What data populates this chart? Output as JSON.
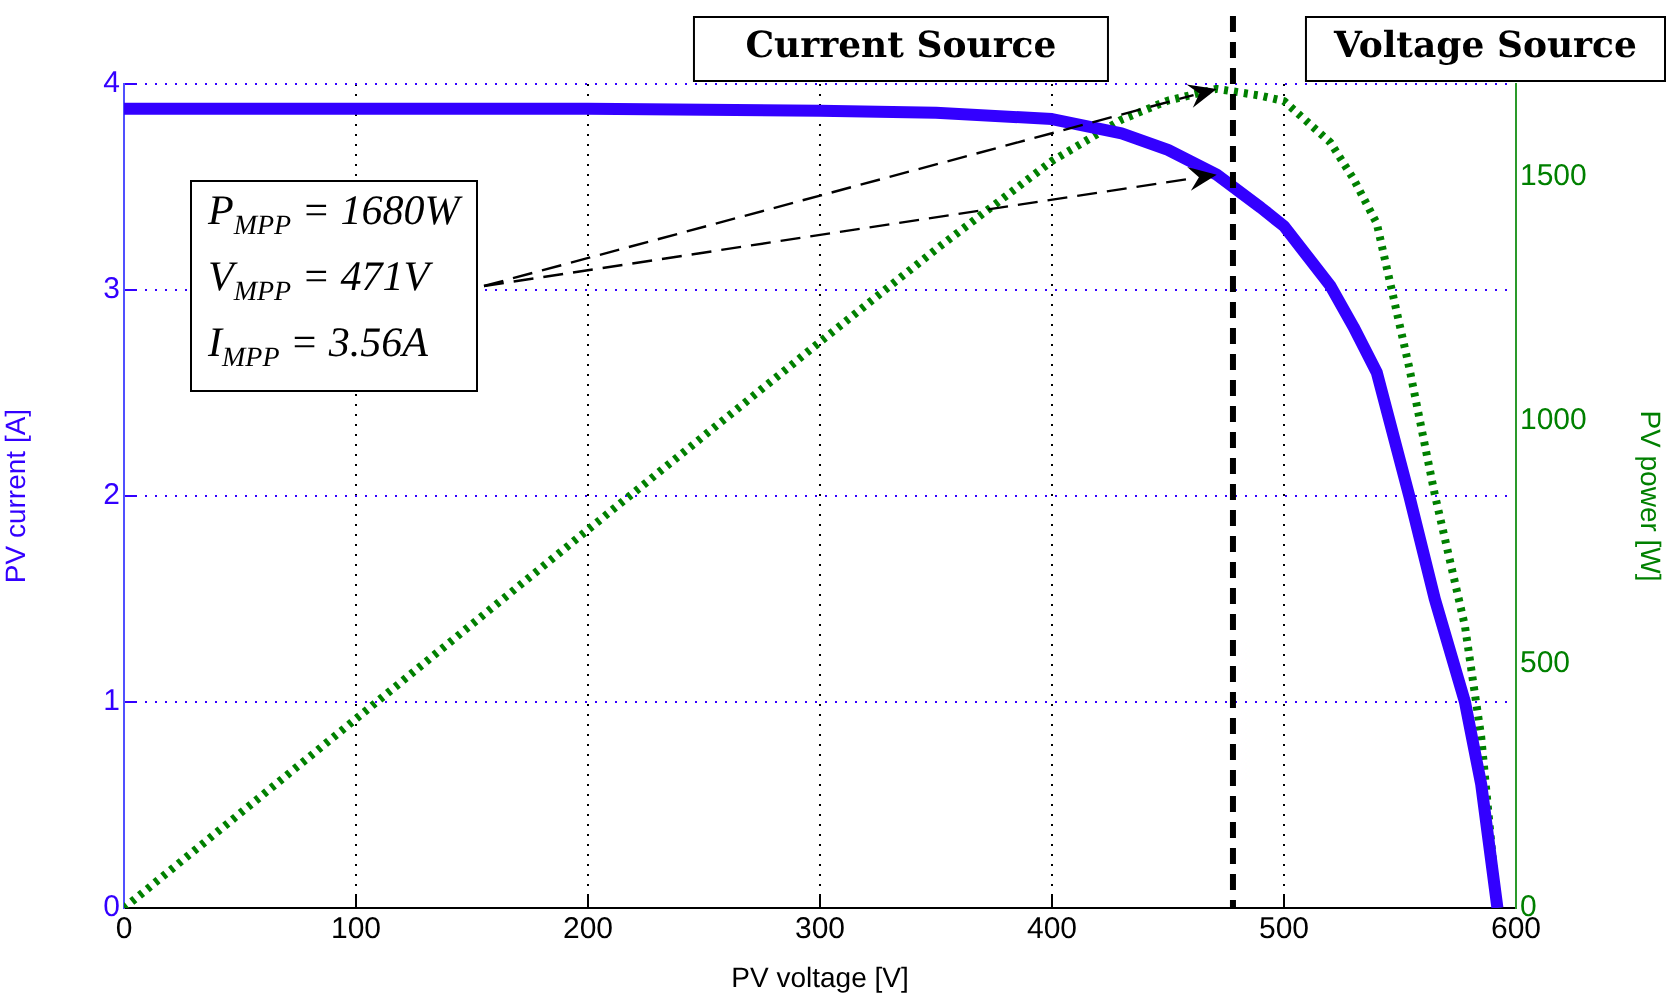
{
  "chart_data": {
    "type": "line",
    "xlabel": "PV voltage [V]",
    "ylabel": "PV current [A]",
    "y2label": "PV power [W]",
    "x": [
      0,
      100,
      200,
      300,
      350,
      400,
      430,
      450,
      471,
      490,
      500,
      520,
      530,
      540,
      554,
      565,
      578,
      585,
      592
    ],
    "series": [
      {
        "color": "#3300ff",
        "values": [
          3.88,
          3.88,
          3.88,
          3.87,
          3.86,
          3.83,
          3.76,
          3.68,
          3.56,
          3.4,
          3.31,
          3.02,
          2.82,
          2.6,
          2.0,
          1.5,
          1.0,
          0.6,
          0
        ],
        "line_style": "solid"
      },
      {
        "color": "#008000",
        "axis": "y2",
        "values": [
          0,
          388,
          776,
          1161,
          1351,
          1532,
          1617,
          1656,
          1680,
          1666,
          1655,
          1570,
          1495,
          1404,
          1108,
          848,
          578,
          351,
          0
        ],
        "line_style": "dotted"
      }
    ],
    "xlim": [
      0,
      600
    ],
    "xticks": [
      0,
      100,
      200,
      300,
      400,
      500,
      600
    ],
    "ylim": [
      0,
      4
    ],
    "yticks": [
      0,
      1,
      2,
      3,
      4
    ],
    "y2lim": [
      0,
      1690
    ],
    "y2ticks": [
      0,
      500,
      1000,
      1500
    ],
    "grid": true,
    "legend": false,
    "marker": "none",
    "ref_lines": [
      {
        "axis": "x",
        "value": 478,
        "color": "#000000",
        "line_style": "dashed"
      }
    ],
    "annotations": [
      "Current Source",
      "Voltage Source",
      "P$_{MPP}$ = 1680W",
      "V$_{MPP}$ = 471V",
      "I$_{MPP}$ = 3.56A"
    ]
  }
}
